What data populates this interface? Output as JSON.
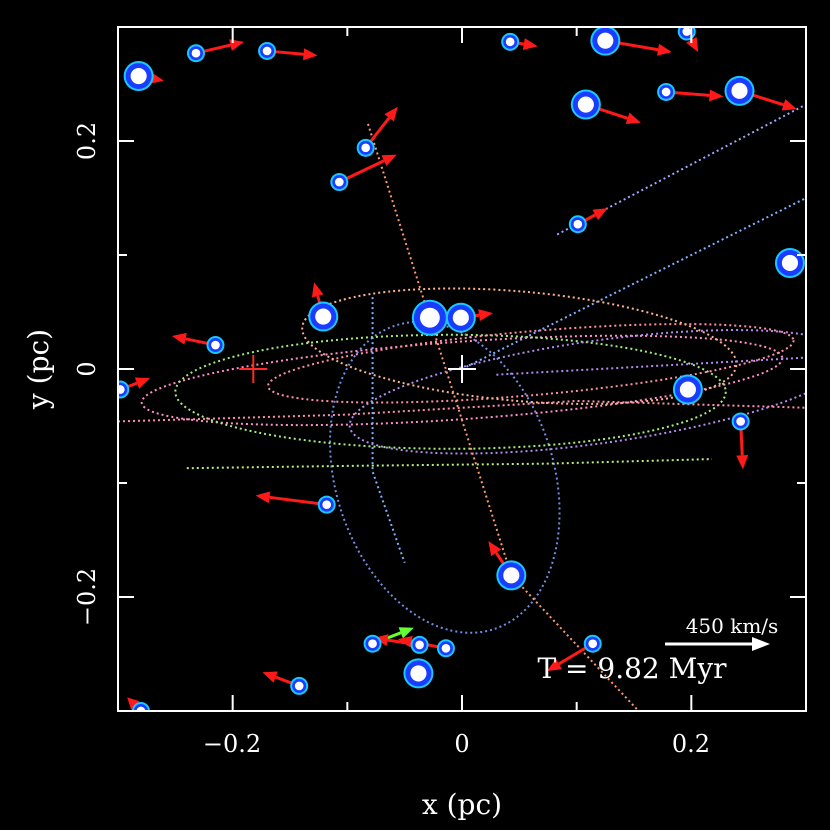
{
  "chart_data": {
    "type": "scatter",
    "xlabel": "x (pc)",
    "ylabel": "y (pc)",
    "xlim": [
      -0.3,
      0.3
    ],
    "ylim": [
      -0.3,
      0.3
    ],
    "x_ticks": [
      -0.2,
      0,
      0.2
    ],
    "y_ticks": [
      -0.2,
      0,
      0.2
    ],
    "x_tick_labels": [
      "−0.2",
      "0",
      "0.2"
    ],
    "y_tick_labels": [
      "−0.2",
      "0",
      "0.2"
    ],
    "time_label": "T = 9.82  Myr",
    "scale_label": "450 km/s",
    "scale_vector_kms": 450,
    "colors": {
      "background": "#000000",
      "frame": "#ffffff",
      "star_core": "#ffffff",
      "star_ring": "#1a3cff",
      "star_halo": "#19c8ff",
      "velocity_arrow": "#ff1a1a",
      "highlight_arrow": "#66ff33",
      "black_hole_marker": "#ffffff",
      "secondary_marker": "#ff2a2a"
    },
    "markers": [
      {
        "name": "central-black-hole",
        "x": 0.0,
        "y": 0.0,
        "color": "#ffffff"
      },
      {
        "name": "secondary-marker",
        "x": -0.182,
        "y": 0.0,
        "color": "#ff2a2a"
      }
    ],
    "stars": [
      {
        "x": -0.282,
        "y": 0.257,
        "size": 3,
        "dx": 0.022,
        "dy": -0.004
      },
      {
        "x": -0.232,
        "y": 0.277,
        "size": 1,
        "dx": 0.042,
        "dy": 0.01
      },
      {
        "x": -0.17,
        "y": 0.279,
        "size": 1,
        "dx": 0.044,
        "dy": -0.004
      },
      {
        "x": 0.042,
        "y": 0.287,
        "size": 1,
        "dx": 0.024,
        "dy": -0.004
      },
      {
        "x": 0.125,
        "y": 0.288,
        "size": 3,
        "dx": 0.058,
        "dy": -0.01
      },
      {
        "x": 0.196,
        "y": 0.296,
        "size": 1,
        "dx": 0.01,
        "dy": -0.018
      },
      {
        "x": 0.108,
        "y": 0.232,
        "size": 3,
        "dx": 0.048,
        "dy": -0.016
      },
      {
        "x": 0.178,
        "y": 0.243,
        "size": 1,
        "dx": 0.05,
        "dy": -0.004
      },
      {
        "x": 0.242,
        "y": 0.244,
        "size": 3,
        "dx": 0.05,
        "dy": -0.016
      },
      {
        "x": -0.084,
        "y": 0.194,
        "size": 1,
        "dx": 0.028,
        "dy": 0.036
      },
      {
        "x": -0.107,
        "y": 0.164,
        "size": 1,
        "dx": 0.05,
        "dy": 0.024
      },
      {
        "x": 0.101,
        "y": 0.127,
        "size": 1,
        "dx": 0.026,
        "dy": 0.014
      },
      {
        "x": 0.286,
        "y": 0.093,
        "size": 3,
        "dx": 0.012,
        "dy": -0.004
      },
      {
        "x": -0.121,
        "y": 0.046,
        "size": 3,
        "dx": -0.008,
        "dy": 0.03
      },
      {
        "x": -0.028,
        "y": 0.045,
        "size": 4,
        "dx": 0.014,
        "dy": 0.0
      },
      {
        "x": -0.001,
        "y": 0.045,
        "size": 3,
        "dx": 0.028,
        "dy": 0.004
      },
      {
        "x": -0.215,
        "y": 0.021,
        "size": 1,
        "dx": -0.038,
        "dy": 0.008
      },
      {
        "x": -0.298,
        "y": -0.018,
        "size": 1,
        "dx": 0.026,
        "dy": 0.01
      },
      {
        "x": 0.197,
        "y": -0.018,
        "size": 3,
        "dx": -0.002,
        "dy": 0.008
      },
      {
        "x": 0.243,
        "y": -0.046,
        "size": 1,
        "dx": 0.002,
        "dy": -0.042
      },
      {
        "x": -0.118,
        "y": -0.119,
        "size": 1,
        "dx": -0.062,
        "dy": 0.008
      },
      {
        "x": 0.043,
        "y": -0.181,
        "size": 3,
        "dx": -0.02,
        "dy": 0.03
      },
      {
        "x": 0.114,
        "y": -0.241,
        "size": 1,
        "dx": -0.04,
        "dy": -0.024
      },
      {
        "x": -0.078,
        "y": -0.241,
        "size": 1,
        "dx": 0.036,
        "dy": 0.014,
        "highlight": true
      },
      {
        "x": -0.037,
        "y": -0.242,
        "size": 1,
        "dx": -0.04,
        "dy": 0.006
      },
      {
        "x": -0.014,
        "y": -0.245,
        "size": 1,
        "dx": -0.042,
        "dy": 0.008
      },
      {
        "x": -0.038,
        "y": -0.267,
        "size": 3,
        "dx": 0.002,
        "dy": 0.006,
        "highlight": true
      },
      {
        "x": -0.142,
        "y": -0.278,
        "size": 1,
        "dx": -0.032,
        "dy": 0.012
      },
      {
        "x": -0.28,
        "y": -0.3,
        "size": 1,
        "dx": -0.012,
        "dy": 0.012
      }
    ],
    "orbits": [
      {
        "type": "ellipse",
        "cx": -0.015,
        "cy": -0.095,
        "rx": 0.095,
        "ry": 0.14,
        "angle": 18,
        "color": "#6f8fe6"
      },
      {
        "type": "ellipse",
        "cx": 0.0,
        "cy": -0.01,
        "rx": 0.28,
        "ry": 0.034,
        "angle": 4,
        "color": "#ff8fc8"
      },
      {
        "type": "ellipse",
        "cx": -0.01,
        "cy": -0.02,
        "rx": 0.24,
        "ry": 0.05,
        "angle": 0,
        "color": "#a2f07a"
      },
      {
        "type": "ellipse",
        "cx": 0.12,
        "cy": -0.02,
        "rx": 0.22,
        "ry": 0.045,
        "angle": 8,
        "color": "#b48cf0"
      },
      {
        "type": "ellipse",
        "cx": 0.06,
        "cy": 0.005,
        "rx": 0.23,
        "ry": 0.028,
        "angle": 5,
        "color": "#ff8fa8"
      },
      {
        "type": "ellipse",
        "cx": 0.05,
        "cy": 0.02,
        "rx": 0.19,
        "ry": 0.048,
        "angle": -5,
        "color": "#ffb48c"
      },
      {
        "type": "line",
        "points": [
          [
            -0.082,
            0.215
          ],
          [
            0.043,
            -0.181
          ],
          [
            0.154,
            -0.3
          ]
        ],
        "color": "#ff9a6a"
      },
      {
        "type": "line",
        "points": [
          [
            -0.24,
            -0.087
          ],
          [
            -0.1,
            -0.085
          ],
          [
            0.076,
            -0.083
          ],
          [
            0.218,
            -0.079
          ]
        ],
        "color": "#b8f07a"
      },
      {
        "type": "line",
        "points": [
          [
            -0.3,
            -0.046
          ],
          [
            -0.1,
            -0.04
          ],
          [
            0.1,
            -0.028
          ],
          [
            0.3,
            -0.034
          ]
        ],
        "color": "#ff8fb0"
      },
      {
        "type": "line",
        "points": [
          [
            -0.078,
            0.063
          ],
          [
            -0.078,
            -0.09
          ],
          [
            -0.05,
            -0.17
          ]
        ],
        "color": "#7fb2ff"
      },
      {
        "type": "line",
        "points": [
          [
            0.083,
            0.118
          ],
          [
            0.3,
            0.232
          ]
        ],
        "color": "#a2a6ff"
      },
      {
        "type": "line",
        "points": [
          [
            0.0,
            0.0
          ],
          [
            0.3,
            0.15
          ]
        ],
        "color": "#7fb2ff"
      },
      {
        "type": "line",
        "points": [
          [
            0.03,
            -0.005
          ],
          [
            0.3,
            0.01
          ]
        ],
        "color": "#b48cf0"
      }
    ]
  }
}
